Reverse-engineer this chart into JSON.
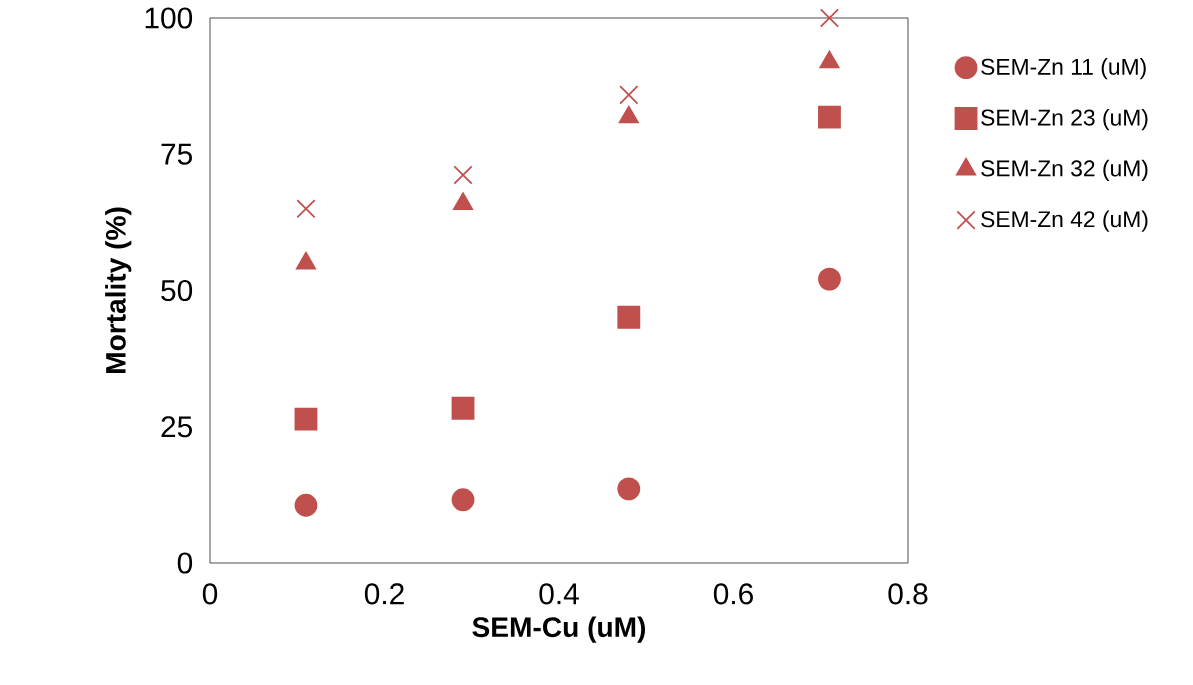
{
  "chart_data": {
    "type": "scatter",
    "xlabel": "SEM-Cu (uM)",
    "ylabel": "Mortality (%)",
    "x": [
      0.11,
      0.29,
      0.48,
      0.71
    ],
    "series": [
      {
        "name": "SEM-Zn 11 (uM)",
        "color": "#c0504d",
        "marker": "circle",
        "values": [
          10.6,
          11.6,
          13.6,
          52.1
        ]
      },
      {
        "name": "SEM-Zn 23 (uM)",
        "color": "#c0504d",
        "marker": "square",
        "values": [
          26.4,
          28.4,
          45.1,
          81.8
        ]
      },
      {
        "name": "SEM-Zn 32 (uM)",
        "color": "#c0504d",
        "marker": "triangle",
        "values": [
          55,
          65.9,
          81.8,
          91.9
        ]
      },
      {
        "name": "SEM-Zn 42 (uM)",
        "color": "#c0504d",
        "marker": "cross",
        "values": [
          65,
          71.2,
          85.9,
          100
        ]
      }
    ],
    "xlim": [
      0,
      0.8
    ],
    "xticks": [
      0,
      0.2,
      0.4,
      0.6,
      0.8
    ],
    "ylim": [
      0,
      100
    ],
    "yticks": [
      0,
      25,
      50,
      75,
      100
    ],
    "grid": false,
    "legend": "right"
  }
}
